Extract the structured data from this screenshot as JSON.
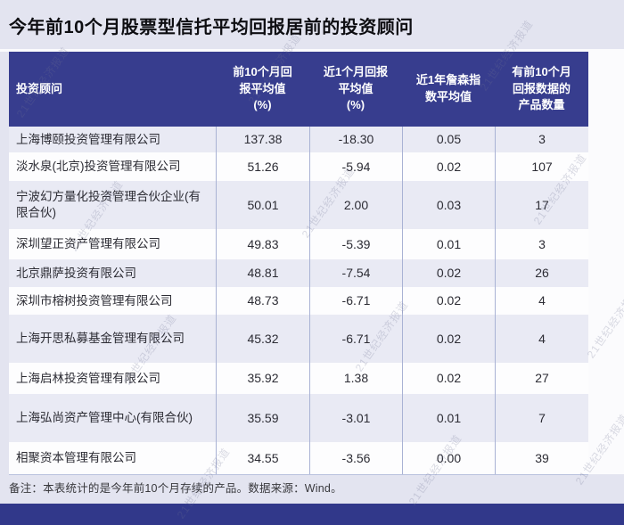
{
  "watermark": {
    "text": "21世纪经济报道"
  },
  "colors": {
    "page_background": "#e3e4f0",
    "header_navy": "#373d8e",
    "footer_navy": "#31388a",
    "row_alt_lavender": "#e9eaf4",
    "row_white": "#fdfdfe",
    "grid_line": "#a9b2d4"
  },
  "chart_data": {
    "type": "table",
    "title": "今年前10个月股票型信托平均回报居前的投资顾问",
    "columns": [
      "投资顾问",
      "前10个月回\n报平均值\n(%)",
      "近1个月回报\n平均值\n(%)",
      "近1年詹森指\n数平均值",
      "有前10个月\n回报数据的\n产品数量"
    ],
    "rows": [
      [
        "上海博颐投资管理有限公司",
        "137.38",
        "-18.30",
        "0.05",
        "3"
      ],
      [
        "淡水泉(北京)投资管理有限公司",
        "51.26",
        "-5.94",
        "0.02",
        "107"
      ],
      [
        "宁波幻方量化投资管理合伙企业(有限合伙)",
        "50.01",
        "2.00",
        "0.03",
        "17"
      ],
      [
        "深圳望正资产管理有限公司",
        "49.83",
        "-5.39",
        "0.01",
        "3"
      ],
      [
        "北京鼎萨投资有限公司",
        "48.81",
        "-7.54",
        "0.02",
        "26"
      ],
      [
        "深圳市榕树投资管理有限公司",
        "48.73",
        "-6.71",
        "0.02",
        "4"
      ],
      [
        "上海开思私募基金管理有限公司",
        "45.32",
        "-6.71",
        "0.02",
        "4"
      ],
      [
        "上海启林投资管理有限公司",
        "35.92",
        "1.38",
        "0.02",
        "27"
      ],
      [
        "上海弘尚资产管理中心(有限合伙)",
        "35.59",
        "-3.01",
        "0.01",
        "7"
      ],
      [
        "相聚资本管理有限公司",
        "34.55",
        "-3.56",
        "0.00",
        "39"
      ]
    ],
    "note": "备注：本表统计的是今年前10个月存续的产品。数据来源：Wind。"
  }
}
